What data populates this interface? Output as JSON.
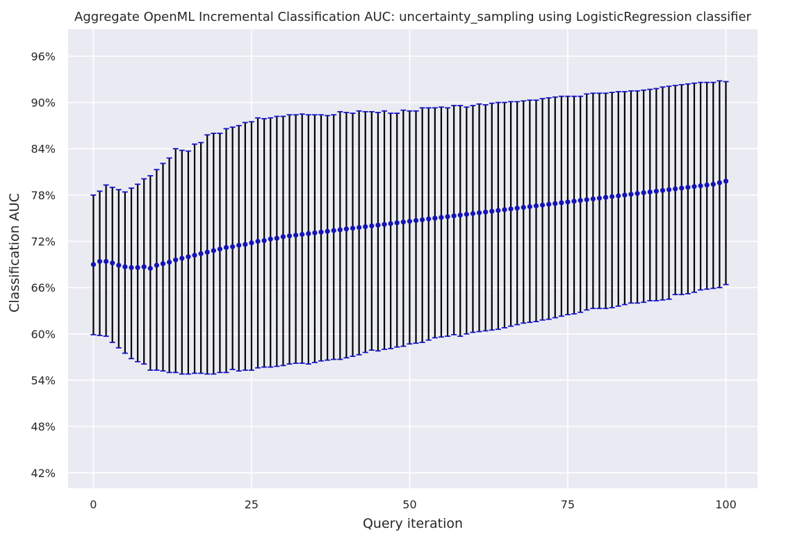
{
  "chart_data": {
    "type": "line",
    "title": "Aggregate OpenML Incremental Classification AUC: uncertainty_sampling using LogisticRegression classifier",
    "xlabel": "Query iteration",
    "ylabel": "Classification AUC",
    "xlim": [
      -4,
      105
    ],
    "ylim": [
      40,
      99.5
    ],
    "x_ticks": [
      0,
      25,
      50,
      75,
      100
    ],
    "x_tick_labels": [
      "0",
      "25",
      "50",
      "75",
      "100"
    ],
    "y_ticks": [
      42,
      48,
      54,
      60,
      66,
      72,
      78,
      84,
      90,
      96
    ],
    "y_tick_labels": [
      "42%",
      "48%",
      "54%",
      "60%",
      "66%",
      "72%",
      "78%",
      "84%",
      "90%",
      "96%"
    ],
    "grid": true,
    "legend": "none",
    "colors": {
      "background": "#eaeaf2",
      "grid": "#ffffff",
      "marker": "#1414b4",
      "errorbar": "#000000",
      "cap": "#1414c8"
    },
    "series": [
      {
        "x": [
          0,
          1,
          2,
          3,
          4,
          5,
          6,
          7,
          8,
          9,
          10,
          11,
          12,
          13,
          14,
          15,
          16,
          17,
          18,
          19,
          20,
          21,
          22,
          23,
          24,
          25,
          26,
          27,
          28,
          29,
          30,
          31,
          32,
          33,
          34,
          35,
          36,
          37,
          38,
          39,
          40,
          41,
          42,
          43,
          44,
          45,
          46,
          47,
          48,
          49,
          50,
          51,
          52,
          53,
          54,
          55,
          56,
          57,
          58,
          59,
          60,
          61,
          62,
          63,
          64,
          65,
          66,
          67,
          68,
          69,
          70,
          71,
          72,
          73,
          74,
          75,
          76,
          77,
          78,
          79,
          80,
          81,
          82,
          83,
          84,
          85,
          86,
          87,
          88,
          89,
          90,
          91,
          92,
          93,
          94,
          95,
          96,
          97,
          98,
          99,
          100
        ],
        "y": [
          69.0,
          69.4,
          69.4,
          69.2,
          68.9,
          68.7,
          68.6,
          68.6,
          68.7,
          68.5,
          68.9,
          69.1,
          69.3,
          69.6,
          69.8,
          70.0,
          70.2,
          70.4,
          70.6,
          70.8,
          71.0,
          71.2,
          71.3,
          71.5,
          71.6,
          71.8,
          72.0,
          72.1,
          72.3,
          72.4,
          72.6,
          72.7,
          72.8,
          72.9,
          73.0,
          73.1,
          73.2,
          73.3,
          73.4,
          73.5,
          73.6,
          73.7,
          73.8,
          73.9,
          74.0,
          74.1,
          74.2,
          74.3,
          74.4,
          74.5,
          74.6,
          74.7,
          74.8,
          74.9,
          75.0,
          75.1,
          75.2,
          75.3,
          75.4,
          75.5,
          75.6,
          75.7,
          75.8,
          75.9,
          76.0,
          76.1,
          76.2,
          76.3,
          76.4,
          76.5,
          76.6,
          76.7,
          76.8,
          76.9,
          77.0,
          77.1,
          77.2,
          77.3,
          77.4,
          77.5,
          77.6,
          77.7,
          77.8,
          77.9,
          78.0,
          78.1,
          78.2,
          78.3,
          78.4,
          78.5,
          78.6,
          78.7,
          78.8,
          78.9,
          79.0,
          79.1,
          79.2,
          79.3,
          79.4,
          79.6,
          79.8
        ],
        "upper": [
          78.0,
          78.5,
          79.3,
          79.0,
          78.7,
          78.4,
          78.9,
          79.4,
          80.1,
          80.5,
          81.3,
          82.1,
          82.8,
          84.0,
          83.8,
          83.7,
          84.6,
          84.8,
          85.8,
          86.0,
          86.0,
          86.6,
          86.8,
          87.0,
          87.4,
          87.5,
          88.0,
          87.9,
          88.0,
          88.2,
          88.2,
          88.4,
          88.4,
          88.5,
          88.4,
          88.4,
          88.4,
          88.3,
          88.4,
          88.8,
          88.7,
          88.6,
          88.9,
          88.8,
          88.8,
          88.7,
          88.9,
          88.6,
          88.6,
          89.0,
          88.9,
          88.9,
          89.3,
          89.3,
          89.3,
          89.4,
          89.3,
          89.6,
          89.6,
          89.4,
          89.6,
          89.8,
          89.7,
          89.9,
          90.0,
          90.0,
          90.1,
          90.1,
          90.2,
          90.3,
          90.3,
          90.5,
          90.6,
          90.7,
          90.8,
          90.8,
          90.8,
          90.8,
          91.1,
          91.2,
          91.2,
          91.2,
          91.3,
          91.4,
          91.4,
          91.5,
          91.5,
          91.6,
          91.7,
          91.8,
          92.0,
          92.1,
          92.2,
          92.3,
          92.4,
          92.5,
          92.6,
          92.6,
          92.6,
          92.8,
          92.7
        ],
        "lower": [
          59.9,
          59.8,
          59.7,
          58.9,
          58.2,
          57.5,
          56.8,
          56.4,
          56.1,
          55.3,
          55.3,
          55.2,
          55.0,
          55.0,
          54.8,
          54.8,
          54.9,
          54.9,
          54.8,
          54.8,
          55.0,
          55.0,
          55.4,
          55.2,
          55.3,
          55.3,
          55.6,
          55.7,
          55.7,
          55.8,
          55.9,
          56.1,
          56.2,
          56.2,
          56.1,
          56.3,
          56.5,
          56.6,
          56.7,
          56.7,
          56.9,
          57.1,
          57.3,
          57.6,
          57.9,
          57.8,
          58.0,
          58.1,
          58.3,
          58.4,
          58.7,
          58.8,
          58.9,
          59.2,
          59.5,
          59.6,
          59.7,
          59.9,
          59.7,
          60.0,
          60.2,
          60.3,
          60.4,
          60.5,
          60.6,
          60.8,
          61.0,
          61.2,
          61.4,
          61.5,
          61.6,
          61.8,
          61.9,
          62.1,
          62.3,
          62.5,
          62.6,
          62.8,
          63.1,
          63.3,
          63.3,
          63.3,
          63.4,
          63.6,
          63.8,
          64.0,
          64.0,
          64.1,
          64.3,
          64.3,
          64.4,
          64.5,
          65.1,
          65.1,
          65.2,
          65.4,
          65.7,
          65.8,
          65.9,
          66.0,
          66.4
        ]
      }
    ]
  }
}
